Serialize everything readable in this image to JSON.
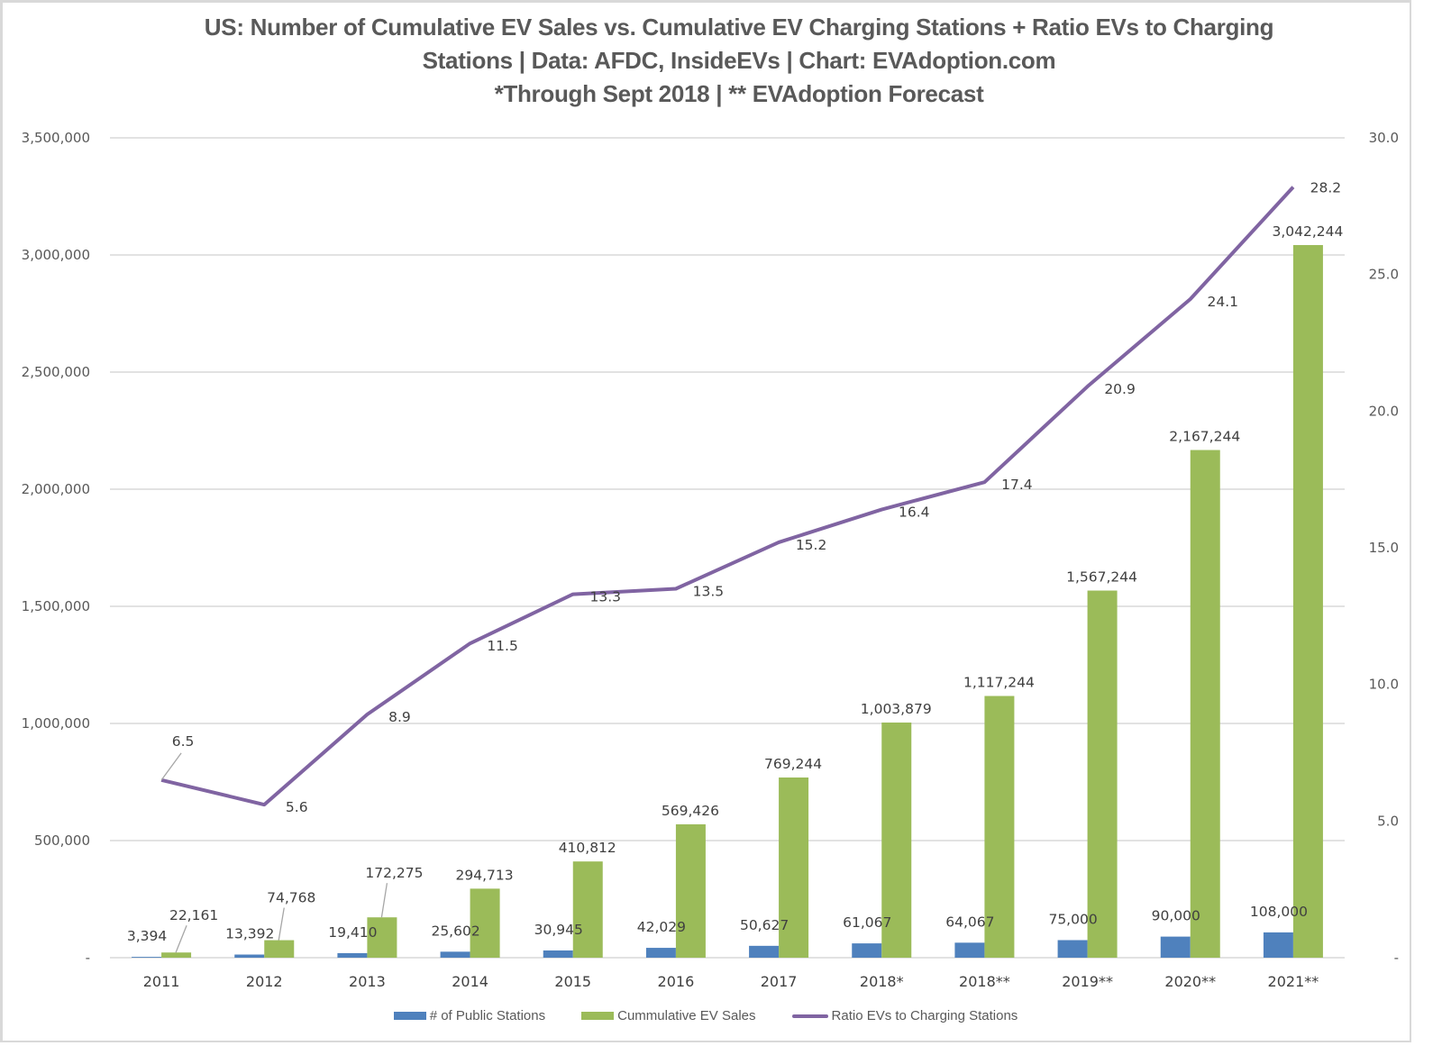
{
  "title_lines": [
    "US: Number of Cumulative EV Sales vs. Cumulative EV Charging Stations + Ratio EVs to Charging",
    "Stations | Data: AFDC, InsideEVs | Chart: EVAdoption.com",
    "*Through Sept 2018 | ** EVAdoption Forecast"
  ],
  "colors": {
    "stations": "#4f81bd",
    "sales": "#9bbb59",
    "ratio": "#8064a2",
    "grid": "#d9d9d9",
    "text": "#595959"
  },
  "chart_data": {
    "type": "bar",
    "title": "US: Number of Cumulative EV Sales vs. Cumulative EV Charging Stations + Ratio EVs to Charging Stations | Data: AFDC, InsideEVs | Chart: EVAdoption.com *Through Sept 2018 | ** EVAdoption Forecast",
    "categories": [
      "2011",
      "2012",
      "2013",
      "2014",
      "2015",
      "2016",
      "2017",
      "2018*",
      "2018**",
      "2019**",
      "2020**",
      "2021**"
    ],
    "series": [
      {
        "name": "# of Public Stations",
        "type": "bar",
        "axis": "left",
        "values": [
          3394,
          13392,
          19410,
          25602,
          30945,
          42029,
          50627,
          61067,
          64067,
          75000,
          90000,
          108000
        ],
        "labels": [
          "3,394",
          "13,392",
          "19,410",
          "25,602",
          "30,945",
          "42,029",
          "50,627",
          "61,067",
          "64,067",
          "75,000",
          "90,000",
          "108,000"
        ]
      },
      {
        "name": "Cummulative EV Sales",
        "type": "bar",
        "axis": "left",
        "values": [
          22161,
          74768,
          172275,
          294713,
          410812,
          569426,
          769244,
          1003879,
          1117244,
          1567244,
          2167244,
          3042244
        ],
        "labels": [
          "22,161",
          "74,768",
          "172,275",
          "294,713",
          "410,812",
          "569,426",
          "769,244",
          "1,003,879",
          "1,117,244",
          "1,567,244",
          "2,167,244",
          "3,042,244"
        ]
      },
      {
        "name": "Ratio EVs to Charging Stations",
        "type": "line",
        "axis": "right",
        "values": [
          6.5,
          5.6,
          8.9,
          11.5,
          13.3,
          13.5,
          15.2,
          16.4,
          17.4,
          20.9,
          24.1,
          28.2
        ],
        "labels": [
          "6.5",
          "5.6",
          "8.9",
          "11.5",
          "13.3",
          "13.5",
          "15.2",
          "16.4",
          "17.4",
          "20.9",
          "24.1",
          "28.2"
        ]
      }
    ],
    "y_left": {
      "range": [
        0,
        3500000
      ],
      "ticks": [
        0,
        500000,
        1000000,
        1500000,
        2000000,
        2500000,
        3000000,
        3500000
      ],
      "tick_labels": [
        "-",
        "500,000",
        "1,000,000",
        "1,500,000",
        "2,000,000",
        "2,500,000",
        "3,000,000",
        "3,500,000"
      ]
    },
    "y_right": {
      "range": [
        0,
        30
      ],
      "ticks": [
        0,
        5,
        10,
        15,
        20,
        25,
        30
      ],
      "tick_labels": [
        "-",
        "5.0",
        "10.0",
        "15.0",
        "20.0",
        "25.0",
        "30.0"
      ]
    },
    "xlabel": "",
    "ylabel": "",
    "grid": true,
    "legend": "bottom"
  },
  "legend": [
    {
      "label": "# of Public Stations",
      "kind": "box",
      "color": "#4f81bd"
    },
    {
      "label": "Cummulative EV Sales",
      "kind": "box",
      "color": "#9bbb59"
    },
    {
      "label": "Ratio EVs to Charging Stations",
      "kind": "line",
      "color": "#8064a2"
    }
  ]
}
